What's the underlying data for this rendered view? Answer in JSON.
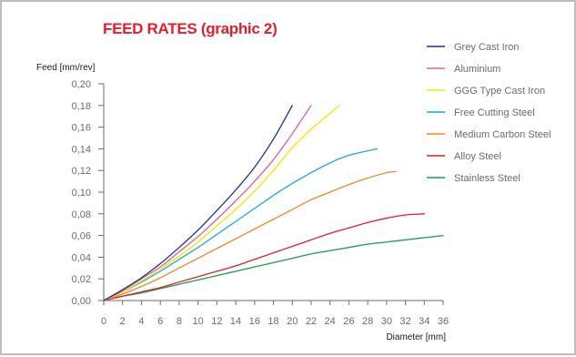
{
  "chart_data": {
    "type": "line",
    "title": "FEED RATES (graphic 2)",
    "xlabel": "Diameter [mm]",
    "ylabel": "Feed [mm/rev]",
    "xlim": [
      0,
      36
    ],
    "ylim": [
      0,
      0.2
    ],
    "x_ticks": [
      "0",
      "2",
      "4",
      "6",
      "8",
      "10",
      "12",
      "14",
      "16",
      "18",
      "20",
      "22",
      "24",
      "26",
      "28",
      "30",
      "32",
      "34",
      "36"
    ],
    "y_ticks": [
      "0,00",
      "0,02",
      "0,04",
      "0,06",
      "0,08",
      "0,10",
      "0,12",
      "0,14",
      "0,16",
      "0,18",
      "0,20"
    ],
    "legend_position": "right",
    "grid": false,
    "series": [
      {
        "name": "Grey Cast Iron",
        "color": "#1f2f8c",
        "x": [
          0,
          2,
          4,
          6,
          8,
          10,
          12,
          14,
          16,
          18,
          20
        ],
        "y": [
          0,
          0.01,
          0.021,
          0.034,
          0.049,
          0.065,
          0.083,
          0.102,
          0.123,
          0.149,
          0.18
        ]
      },
      {
        "name": "Aluminium",
        "color": "#e0609a",
        "x": [
          0,
          2,
          4,
          6,
          8,
          10,
          12,
          14,
          16,
          18,
          20,
          22
        ],
        "y": [
          0,
          0.009,
          0.02,
          0.031,
          0.045,
          0.059,
          0.075,
          0.092,
          0.11,
          0.13,
          0.154,
          0.18
        ]
      },
      {
        "name": "GGG Type Cast Iron",
        "color": "#f5e600",
        "x": [
          0,
          2,
          4,
          6,
          8,
          10,
          12,
          14,
          16,
          18,
          20,
          22,
          25
        ],
        "y": [
          0,
          0.008,
          0.018,
          0.029,
          0.041,
          0.054,
          0.069,
          0.084,
          0.101,
          0.12,
          0.141,
          0.158,
          0.18
        ]
      },
      {
        "name": "Free Cutting Steel",
        "color": "#19a9e0",
        "x": [
          0,
          2,
          4,
          6,
          8,
          10,
          12,
          14,
          16,
          18,
          20,
          22,
          24,
          26,
          29
        ],
        "y": [
          0,
          0.008,
          0.017,
          0.027,
          0.038,
          0.049,
          0.061,
          0.073,
          0.085,
          0.097,
          0.108,
          0.118,
          0.127,
          0.134,
          0.14
        ]
      },
      {
        "name": "Medium Carbon Steel",
        "color": "#f0882c",
        "x": [
          0,
          2,
          4,
          6,
          8,
          10,
          12,
          14,
          16,
          18,
          20,
          22,
          24,
          26,
          28,
          30,
          31
        ],
        "y": [
          0,
          0.006,
          0.013,
          0.021,
          0.03,
          0.039,
          0.048,
          0.057,
          0.066,
          0.075,
          0.084,
          0.093,
          0.1,
          0.107,
          0.113,
          0.118,
          0.119
        ]
      },
      {
        "name": "Alloy Steel",
        "color": "#e0202f",
        "x": [
          0,
          2,
          4,
          6,
          8,
          10,
          12,
          14,
          16,
          18,
          20,
          22,
          24,
          26,
          28,
          30,
          32,
          34
        ],
        "y": [
          0,
          0.004,
          0.008,
          0.012,
          0.017,
          0.022,
          0.027,
          0.032,
          0.038,
          0.044,
          0.05,
          0.056,
          0.062,
          0.067,
          0.072,
          0.076,
          0.079,
          0.08
        ]
      },
      {
        "name": "Stainless Steel",
        "color": "#1e9a4a",
        "x": [
          0,
          2,
          4,
          6,
          8,
          10,
          12,
          14,
          16,
          18,
          20,
          22,
          24,
          26,
          28,
          30,
          32,
          34,
          36
        ],
        "y": [
          0,
          0.004,
          0.007,
          0.011,
          0.015,
          0.019,
          0.023,
          0.027,
          0.031,
          0.035,
          0.039,
          0.043,
          0.046,
          0.049,
          0.052,
          0.054,
          0.056,
          0.058,
          0.06
        ]
      }
    ]
  },
  "colors": {
    "title": "#e31e2d",
    "axis": "#6b6b6b",
    "border": "#bdbdbd"
  }
}
